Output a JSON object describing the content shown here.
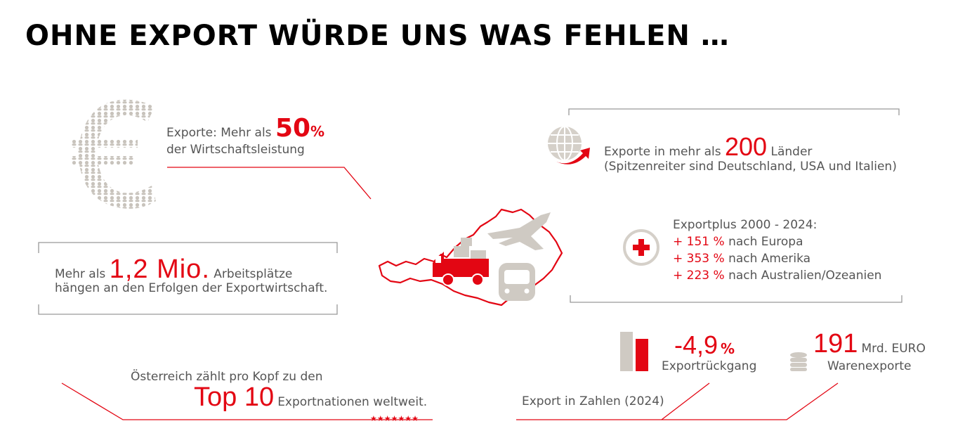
{
  "title": "OHNE EXPORT WÜRDE UNS WAS FEHLEN …",
  "exports_share": {
    "prefix": "Exporte: Mehr als",
    "value": "50",
    "unit": "%",
    "suffix": "der Wirtschaftsleistung"
  },
  "jobs": {
    "prefix": "Mehr als",
    "value": "1,2 Mio.",
    "suffix": "Arbeitsplätze",
    "line2": "hängen an den Erfolgen der Exportwirtschaft."
  },
  "countries": {
    "prefix": "Exporte in mehr als",
    "value": "200",
    "suffix": "Länder",
    "line2": "(Spitzenreiter sind Deutschland, USA und Italien)"
  },
  "export_plus": {
    "heading": "Exportplus 2000 - 2024:",
    "items": [
      {
        "plus": "+ 151 %",
        "text": "nach Europa"
      },
      {
        "plus": "+ 353 %",
        "text": "nach Amerika"
      },
      {
        "plus": "+ 223 %",
        "text": "nach Australien/Ozeanien"
      }
    ]
  },
  "top10": {
    "line1": "Österreich zählt pro Kopf zu den",
    "value": "Top 10",
    "suffix": "Exportnationen weltweit.",
    "stars": "★★★★★★★"
  },
  "figures": {
    "label": "Export in Zahlen (2024)",
    "decline": {
      "value": "-4,9",
      "unit": "%",
      "label": "Exportrückgang"
    },
    "goods": {
      "value": "191",
      "unit": "Mrd. EURO",
      "label": "Warenexporte"
    }
  },
  "colors": {
    "accent": "#e30613",
    "grey": "#cfcac3",
    "text": "#555555"
  }
}
